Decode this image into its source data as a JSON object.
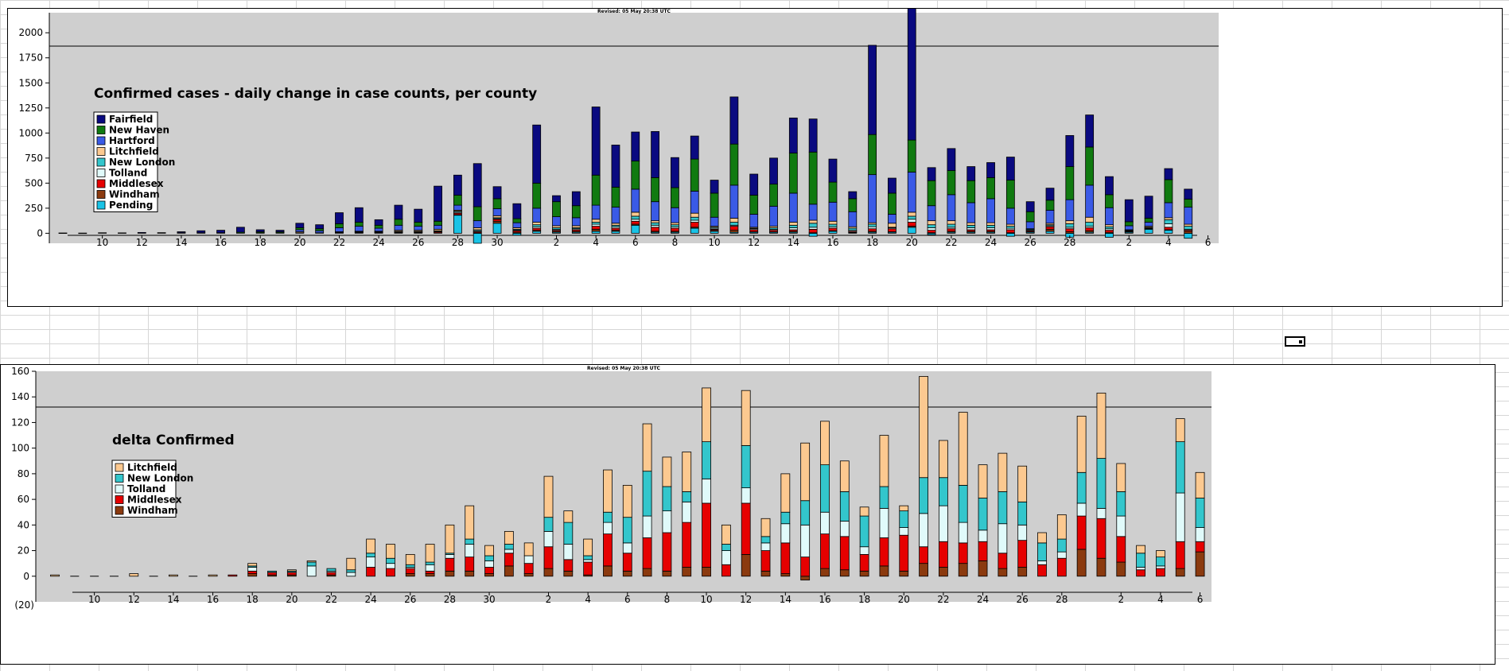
{
  "chart_data": [
    {
      "type": "bar",
      "stacked": true,
      "revised": "Revised: 05 May 20:38 UTC",
      "title": "Confirmed cases - daily change in case counts, per county",
      "ylim": [
        -100,
        2200
      ],
      "yticks": [
        0,
        250,
        500,
        750,
        1000,
        1250,
        1500,
        1750,
        2000
      ],
      "xtick_labels": [
        {
          "i": 2,
          "label": "10"
        },
        {
          "i": 4,
          "label": "12"
        },
        {
          "i": 6,
          "label": "14"
        },
        {
          "i": 8,
          "label": "16"
        },
        {
          "i": 10,
          "label": "18"
        },
        {
          "i": 12,
          "label": "20"
        },
        {
          "i": 14,
          "label": "22"
        },
        {
          "i": 16,
          "label": "24"
        },
        {
          "i": 18,
          "label": "26"
        },
        {
          "i": 20,
          "label": "28"
        },
        {
          "i": 22,
          "label": "30"
        },
        {
          "i": 25,
          "label": "2"
        },
        {
          "i": 27,
          "label": "4"
        },
        {
          "i": 29,
          "label": "6"
        },
        {
          "i": 31,
          "label": "8"
        },
        {
          "i": 33,
          "label": "10"
        },
        {
          "i": 35,
          "label": "12"
        },
        {
          "i": 37,
          "label": "14"
        },
        {
          "i": 39,
          "label": "16"
        },
        {
          "i": 41,
          "label": "18"
        },
        {
          "i": 43,
          "label": "20"
        },
        {
          "i": 45,
          "label": "22"
        },
        {
          "i": 47,
          "label": "24"
        },
        {
          "i": 49,
          "label": "26"
        },
        {
          "i": 51,
          "label": "28"
        },
        {
          "i": 54,
          "label": "2"
        },
        {
          "i": 56,
          "label": "4"
        },
        {
          "i": 58,
          "label": "6"
        }
      ],
      "series": [
        {
          "name": "Pending",
          "color": "#19c3e6"
        },
        {
          "name": "Windham",
          "color": "#8b3a0f"
        },
        {
          "name": "Middlesex",
          "color": "#e60000"
        },
        {
          "name": "Tolland",
          "color": "#e0fafa"
        },
        {
          "name": "New London",
          "color": "#33c6cc"
        },
        {
          "name": "Litchfield",
          "color": "#fcc990"
        },
        {
          "name": "Hartford",
          "color": "#3a5ae6"
        },
        {
          "name": "New Haven",
          "color": "#107a10"
        },
        {
          "name": "Fairfield",
          "color": "#0a0a80"
        }
      ],
      "legend_order": [
        "Fairfield",
        "New Haven",
        "Hartford",
        "Litchfield",
        "New London",
        "Tolland",
        "Middlesex",
        "Windham",
        "Pending"
      ],
      "values": [
        [
          0,
          0,
          0,
          0,
          0,
          0,
          0,
          0,
          3
        ],
        [
          0,
          0,
          0,
          0,
          0,
          0,
          0,
          0,
          2
        ],
        [
          0,
          0,
          0,
          0,
          0,
          0,
          0,
          0,
          5
        ],
        [
          0,
          0,
          0,
          0,
          0,
          0,
          0,
          0,
          4
        ],
        [
          0,
          0,
          0,
          0,
          0,
          0,
          0,
          0,
          8
        ],
        [
          0,
          0,
          0,
          0,
          0,
          0,
          0,
          0,
          6
        ],
        [
          0,
          0,
          0,
          0,
          0,
          0,
          0,
          5,
          10
        ],
        [
          0,
          0,
          0,
          0,
          0,
          0,
          0,
          5,
          20
        ],
        [
          0,
          0,
          0,
          0,
          0,
          0,
          0,
          5,
          25
        ],
        [
          0,
          0,
          0,
          0,
          0,
          0,
          0,
          10,
          50
        ],
        [
          0,
          0,
          0,
          0,
          0,
          0,
          5,
          10,
          20
        ],
        [
          0,
          0,
          0,
          0,
          0,
          0,
          5,
          10,
          15
        ],
        [
          0,
          0,
          0,
          5,
          0,
          10,
          20,
          20,
          45
        ],
        [
          0,
          0,
          0,
          0,
          0,
          5,
          20,
          20,
          40
        ],
        [
          0,
          0,
          5,
          0,
          5,
          5,
          40,
          40,
          110
        ],
        [
          0,
          0,
          5,
          5,
          5,
          5,
          50,
          40,
          145
        ],
        [
          0,
          0,
          5,
          5,
          5,
          5,
          30,
          30,
          55
        ],
        [
          0,
          5,
          5,
          5,
          5,
          10,
          50,
          60,
          140
        ],
        [
          0,
          5,
          5,
          5,
          5,
          10,
          40,
          40,
          130
        ],
        [
          0,
          5,
          10,
          5,
          5,
          15,
          40,
          40,
          350
        ],
        [
          180,
          5,
          15,
          10,
          10,
          10,
          50,
          100,
          200
        ],
        [
          -100,
          5,
          10,
          10,
          10,
          20,
          70,
          140,
          430
        ],
        [
          100,
          20,
          20,
          5,
          10,
          20,
          70,
          100,
          120
        ],
        [
          -20,
          10,
          15,
          5,
          10,
          15,
          50,
          40,
          150
        ],
        [
          20,
          10,
          20,
          15,
          20,
          25,
          140,
          250,
          580
        ],
        [
          10,
          10,
          10,
          10,
          15,
          20,
          90,
          150,
          60
        ],
        [
          10,
          10,
          15,
          10,
          10,
          20,
          80,
          120,
          140
        ],
        [
          20,
          20,
          30,
          20,
          20,
          30,
          140,
          300,
          680
        ],
        [
          20,
          10,
          20,
          15,
          15,
          20,
          160,
          200,
          420
        ],
        [
          80,
          10,
          30,
          20,
          30,
          40,
          230,
          280,
          290
        ],
        [
          10,
          10,
          40,
          20,
          25,
          20,
          190,
          240,
          460
        ],
        [
          10,
          10,
          30,
          15,
          20,
          20,
          150,
          200,
          300
        ],
        [
          50,
          10,
          50,
          20,
          30,
          40,
          220,
          320,
          230
        ],
        [
          20,
          10,
          10,
          10,
          10,
          10,
          90,
          240,
          130
        ],
        [
          10,
          20,
          40,
          10,
          30,
          40,
          330,
          410,
          470
        ],
        [
          10,
          5,
          20,
          10,
          5,
          10,
          130,
          190,
          210
        ],
        [
          10,
          5,
          15,
          10,
          15,
          15,
          200,
          220,
          260
        ],
        [
          10,
          10,
          15,
          20,
          25,
          30,
          290,
          400,
          350
        ],
        [
          -30,
          5,
          35,
          20,
          40,
          30,
          160,
          520,
          330
        ],
        [
          20,
          5,
          25,
          15,
          25,
          30,
          190,
          200,
          230
        ],
        [
          5,
          5,
          10,
          10,
          20,
          15,
          150,
          130,
          70
        ],
        [
          10,
          10,
          25,
          20,
          25,
          15,
          480,
          400,
          890
        ],
        [
          10,
          5,
          30,
          10,
          5,
          40,
          90,
          210,
          150
        ],
        [
          60,
          10,
          40,
          30,
          30,
          40,
          400,
          320,
          1410
        ],
        [
          -15,
          5,
          25,
          25,
          30,
          40,
          150,
          250,
          130
        ],
        [
          10,
          10,
          25,
          15,
          30,
          35,
          260,
          240,
          220
        ],
        [
          10,
          10,
          15,
          20,
          25,
          25,
          200,
          220,
          140
        ],
        [
          10,
          10,
          15,
          20,
          25,
          25,
          240,
          210,
          150
        ],
        [
          -30,
          5,
          30,
          15,
          20,
          20,
          160,
          280,
          230
        ],
        [
          10,
          5,
          10,
          5,
          10,
          5,
          70,
          100,
          100
        ],
        [
          20,
          20,
          25,
          10,
          10,
          15,
          130,
          100,
          120
        ],
        [
          -40,
          15,
          30,
          15,
          35,
          30,
          210,
          330,
          310
        ],
        [
          10,
          15,
          30,
          15,
          40,
          50,
          320,
          380,
          320
        ],
        [
          -40,
          10,
          20,
          15,
          20,
          20,
          170,
          130,
          180
        ],
        [
          10,
          5,
          5,
          5,
          5,
          5,
          40,
          40,
          220
        ],
        [
          40,
          5,
          5,
          5,
          5,
          10,
          40,
          40,
          220
        ],
        [
          30,
          5,
          25,
          35,
          40,
          20,
          150,
          230,
          110
        ],
        [
          -50,
          20,
          10,
          10,
          30,
          20,
          170,
          80,
          100
        ]
      ]
    },
    {
      "type": "bar",
      "stacked": true,
      "revised": "Revised: 05 May 20:38 UTC",
      "title": "delta Confirmed",
      "ylim": [
        -20,
        160
      ],
      "yticks": [
        0,
        20,
        40,
        60,
        80,
        100,
        120,
        140,
        160
      ],
      "ytick_negative_label": "(20)",
      "xtick_labels": [
        {
          "i": 2,
          "label": "10"
        },
        {
          "i": 4,
          "label": "12"
        },
        {
          "i": 6,
          "label": "14"
        },
        {
          "i": 8,
          "label": "16"
        },
        {
          "i": 10,
          "label": "18"
        },
        {
          "i": 12,
          "label": "20"
        },
        {
          "i": 14,
          "label": "22"
        },
        {
          "i": 16,
          "label": "24"
        },
        {
          "i": 18,
          "label": "26"
        },
        {
          "i": 20,
          "label": "28"
        },
        {
          "i": 22,
          "label": "30"
        },
        {
          "i": 25,
          "label": "2"
        },
        {
          "i": 27,
          "label": "4"
        },
        {
          "i": 29,
          "label": "6"
        },
        {
          "i": 31,
          "label": "8"
        },
        {
          "i": 33,
          "label": "10"
        },
        {
          "i": 35,
          "label": "12"
        },
        {
          "i": 37,
          "label": "14"
        },
        {
          "i": 39,
          "label": "16"
        },
        {
          "i": 41,
          "label": "18"
        },
        {
          "i": 43,
          "label": "20"
        },
        {
          "i": 45,
          "label": "22"
        },
        {
          "i": 47,
          "label": "24"
        },
        {
          "i": 49,
          "label": "26"
        },
        {
          "i": 51,
          "label": "28"
        },
        {
          "i": 54,
          "label": "2"
        },
        {
          "i": 56,
          "label": "4"
        },
        {
          "i": 58,
          "label": "6"
        }
      ],
      "series": [
        {
          "name": "Windham",
          "color": "#8b3a0f"
        },
        {
          "name": "Middlesex",
          "color": "#e60000"
        },
        {
          "name": "Tolland",
          "color": "#e0fafa"
        },
        {
          "name": "New London",
          "color": "#33c6cc"
        },
        {
          "name": "Litchfield",
          "color": "#fcc990"
        }
      ],
      "legend_order": [
        "Litchfield",
        "New London",
        "Tolland",
        "Middlesex",
        "Windham"
      ],
      "values": [
        [
          0,
          0,
          0,
          0,
          1
        ],
        [
          0,
          0,
          0,
          0,
          0
        ],
        [
          0,
          0,
          0,
          0,
          0
        ],
        [
          0,
          0,
          0,
          0,
          0
        ],
        [
          0,
          0,
          0,
          0,
          2
        ],
        [
          0,
          0,
          0,
          0,
          0
        ],
        [
          0,
          0,
          0,
          0,
          1
        ],
        [
          0,
          0,
          0,
          0,
          0
        ],
        [
          0,
          0,
          0,
          0,
          1
        ],
        [
          0,
          1,
          0,
          0,
          0
        ],
        [
          2,
          2,
          3,
          1,
          2
        ],
        [
          1,
          2,
          0,
          1,
          0
        ],
        [
          1,
          2,
          0,
          1,
          1
        ],
        [
          0,
          0,
          8,
          3,
          1
        ],
        [
          1,
          2,
          1,
          2,
          0
        ],
        [
          0,
          0,
          3,
          2,
          9
        ],
        [
          0,
          7,
          8,
          3,
          11
        ],
        [
          0,
          6,
          4,
          4,
          11
        ],
        [
          2,
          4,
          1,
          2,
          8
        ],
        [
          2,
          2,
          5,
          2,
          14
        ],
        [
          4,
          10,
          3,
          1,
          22
        ],
        [
          4,
          11,
          10,
          4,
          26
        ],
        [
          2,
          5,
          5,
          4,
          8
        ],
        [
          8,
          10,
          3,
          4,
          10
        ],
        [
          2,
          8,
          6,
          0,
          10
        ],
        [
          6,
          17,
          12,
          11,
          32
        ],
        [
          4,
          9,
          12,
          17,
          9
        ],
        [
          1,
          10,
          2,
          3,
          13
        ],
        [
          8,
          25,
          9,
          8,
          33
        ],
        [
          4,
          14,
          8,
          20,
          25
        ],
        [
          6,
          24,
          17,
          35,
          37
        ],
        [
          4,
          30,
          17,
          19,
          23
        ],
        [
          7,
          35,
          16,
          8,
          31
        ],
        [
          7,
          50,
          19,
          29,
          42
        ],
        [
          0,
          9,
          11,
          5,
          15
        ],
        [
          17,
          40,
          12,
          33,
          43
        ],
        [
          4,
          16,
          6,
          5,
          14
        ],
        [
          2,
          24,
          15,
          9,
          30
        ],
        [
          -3,
          15,
          25,
          19,
          45
        ],
        [
          6,
          27,
          17,
          37,
          34
        ],
        [
          5,
          26,
          12,
          23,
          24
        ],
        [
          4,
          13,
          6,
          24,
          7
        ],
        [
          8,
          22,
          23,
          17,
          40
        ],
        [
          4,
          28,
          6,
          13,
          4
        ],
        [
          10,
          13,
          26,
          28,
          79
        ],
        [
          7,
          20,
          28,
          22,
          29
        ],
        [
          10,
          16,
          16,
          29,
          57
        ],
        [
          12,
          15,
          9,
          25,
          26
        ],
        [
          6,
          12,
          23,
          25,
          30
        ],
        [
          7,
          21,
          12,
          18,
          28
        ],
        [
          0,
          9,
          3,
          14,
          8
        ],
        [
          0,
          14,
          5,
          10,
          19
        ],
        [
          21,
          26,
          10,
          24,
          44
        ],
        [
          14,
          31,
          8,
          39,
          51
        ],
        [
          11,
          20,
          16,
          19,
          22
        ],
        [
          0,
          5,
          2,
          11,
          6
        ],
        [
          0,
          6,
          2,
          7,
          5
        ],
        [
          6,
          21,
          38,
          40,
          18
        ],
        [
          19,
          8,
          11,
          23,
          20
        ]
      ]
    }
  ]
}
